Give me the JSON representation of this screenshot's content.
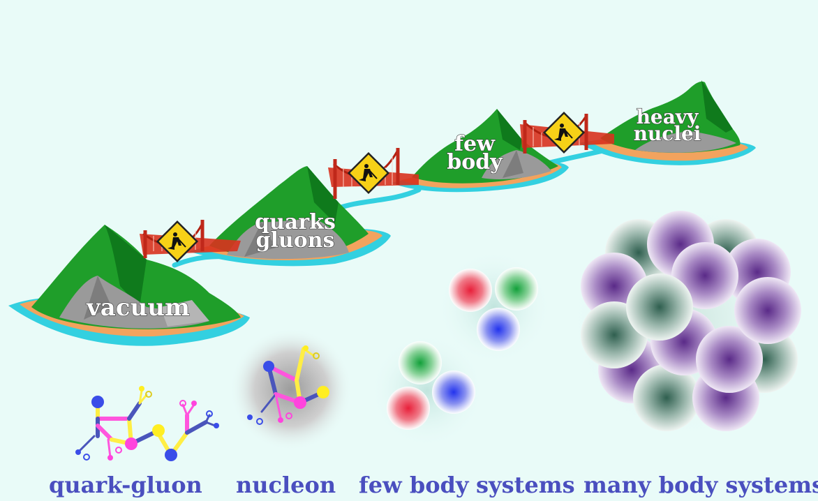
{
  "islands": {
    "vacuum": "vacuum",
    "quarks_line1": "quarks",
    "quarks_line2": "gluons",
    "few_line1": "few",
    "few_line2": "body",
    "heavy_line1": "heavy",
    "heavy_line2": "nuclei"
  },
  "captions": {
    "quark_gluon": "quark-gluon",
    "nucleon": "nucleon",
    "few_body": "few body",
    "systems": "systems",
    "many_body": "many body systems"
  },
  "icons": {
    "bridge": "suspension-bridge-icon",
    "construction_sign": "road-work-sign-icon"
  },
  "colors": {
    "background": "#e9fbf8",
    "island_green": "#1f9e2a",
    "island_rock": "#9a9a9a",
    "island_sand": "#f2a35e",
    "island_water": "#33d0e0",
    "bridge_red": "#d8321e",
    "sign_yellow": "#f7d117",
    "caption_blue": "#4a4fbf",
    "quark_red": "#e8404f",
    "quark_green": "#2aa84a",
    "quark_blue": "#3a4de8",
    "nucleon_purple": "#6b3a96",
    "nucleon_teal": "#3e6b5a"
  }
}
